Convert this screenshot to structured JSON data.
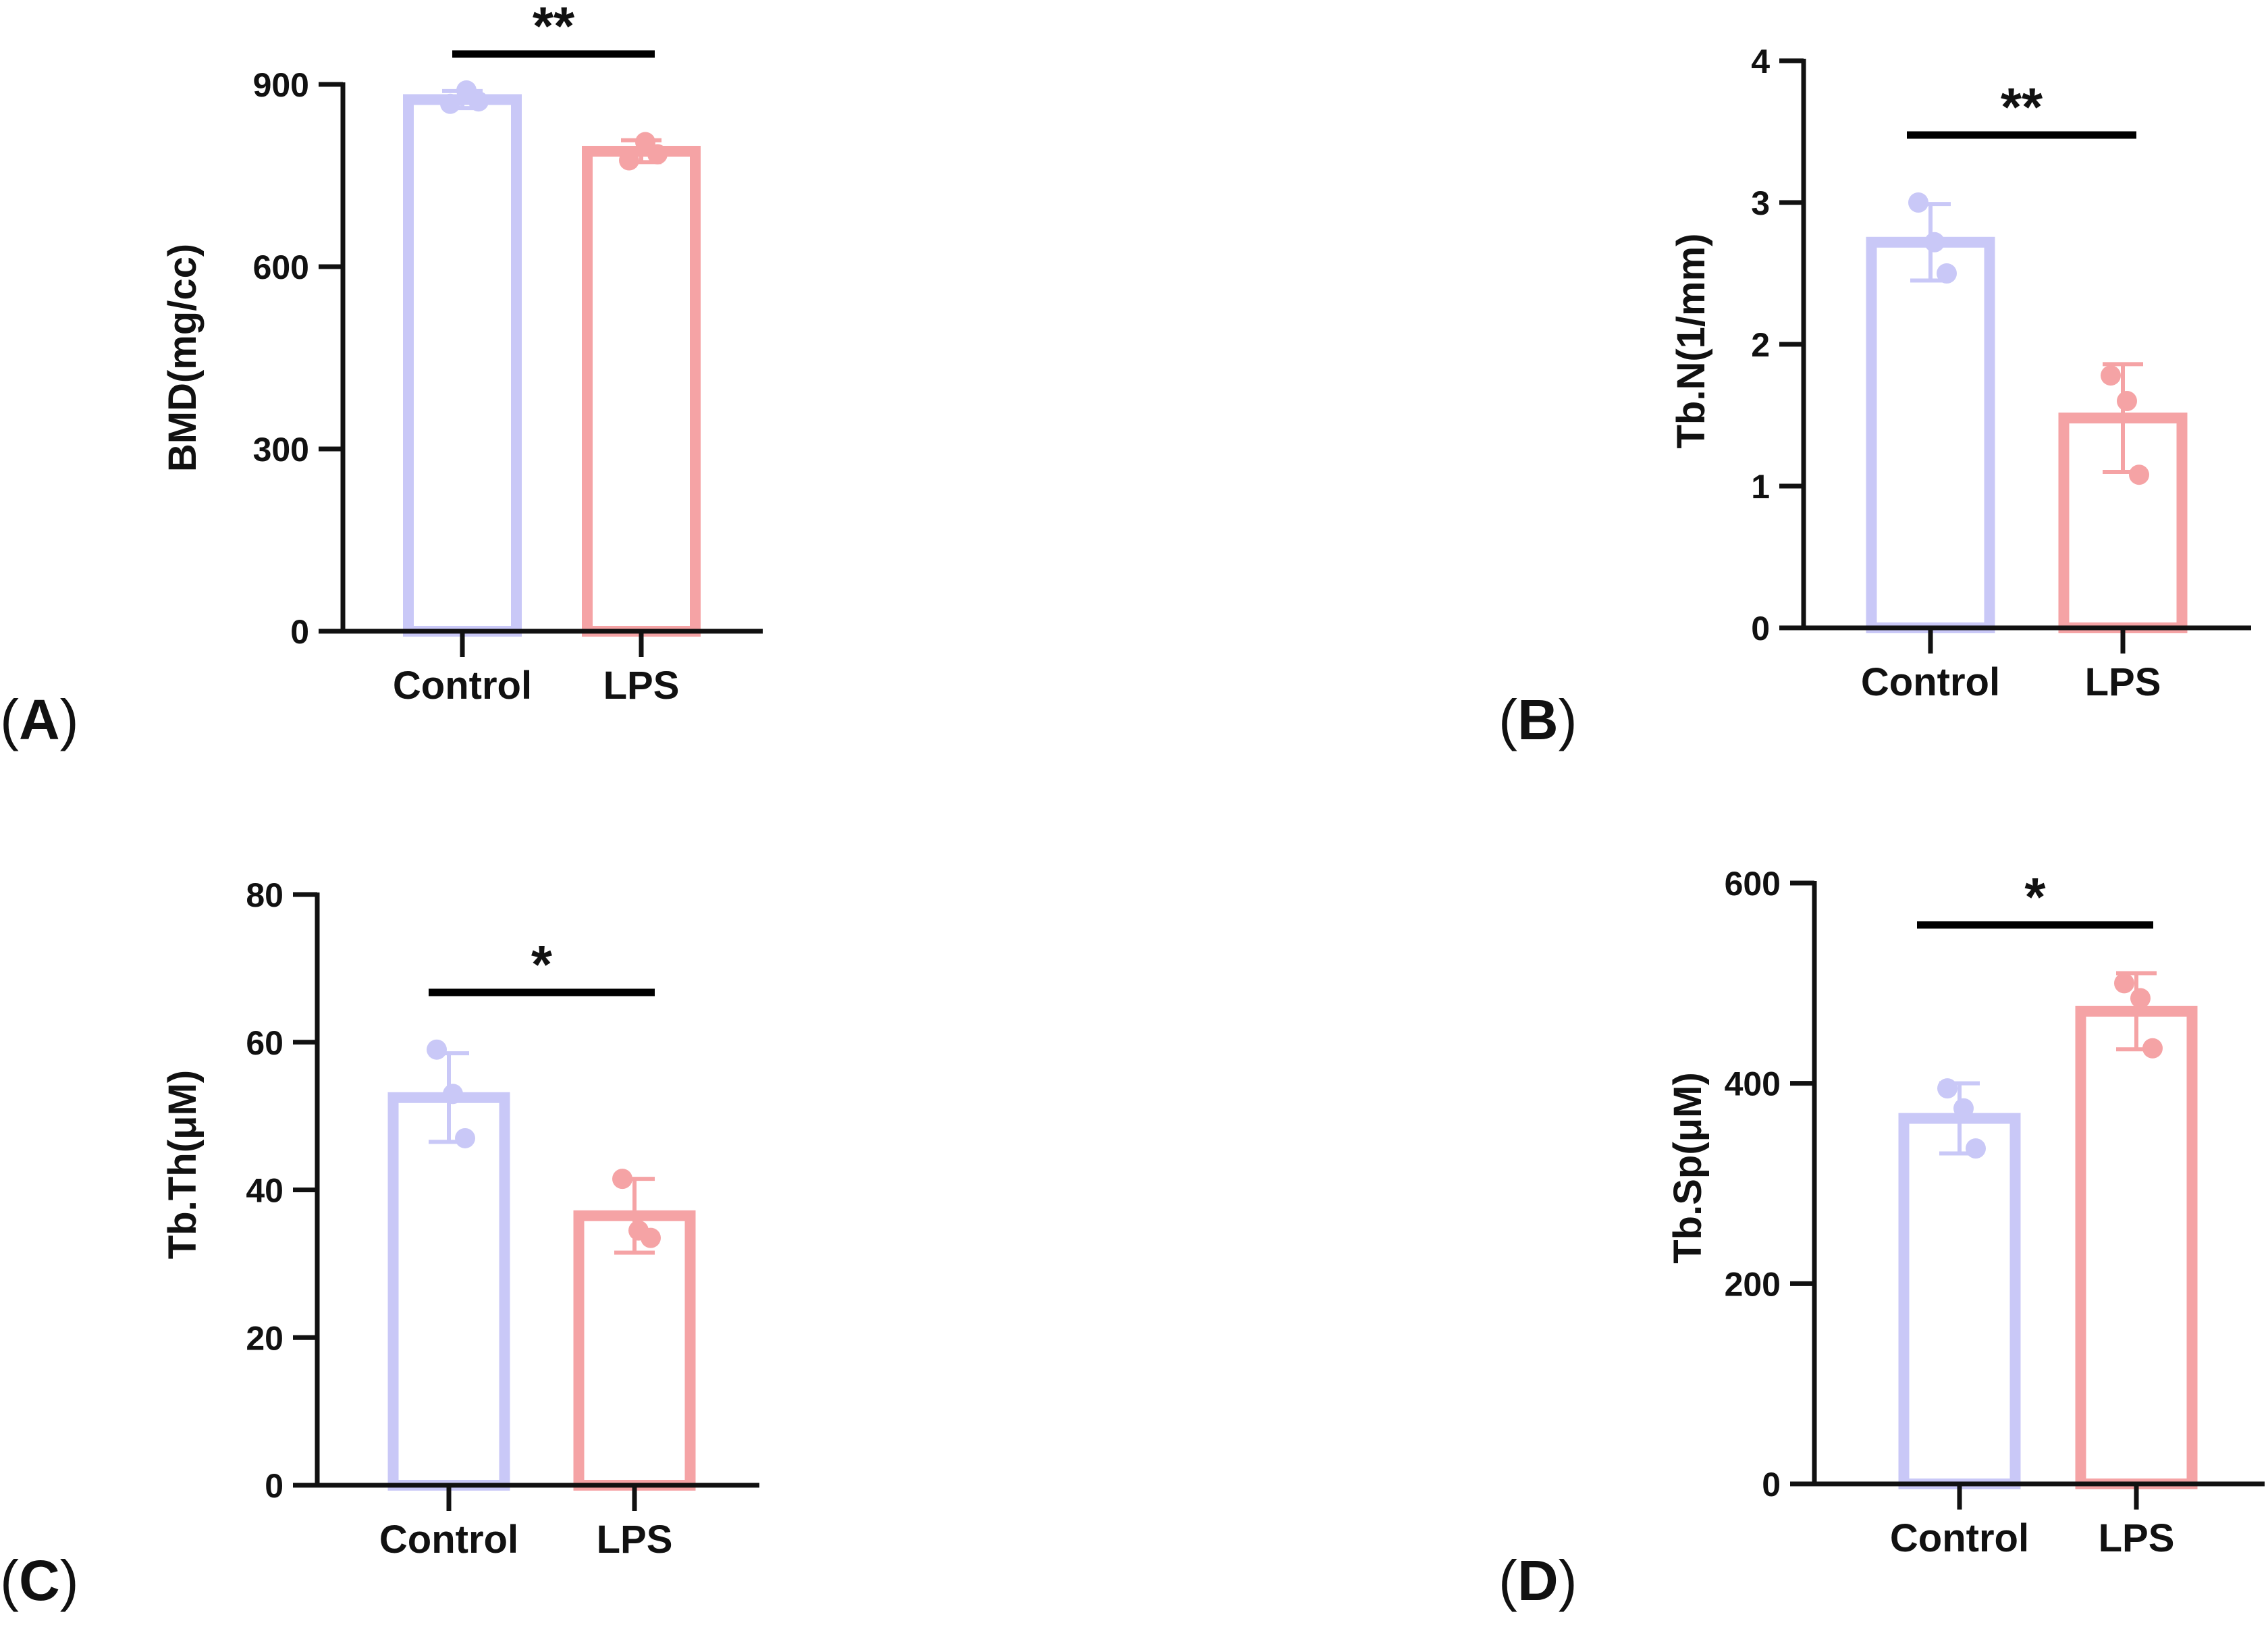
{
  "colors": {
    "control": "#c9c8f7",
    "lps": "#f5a3a5",
    "axis": "#111111"
  },
  "chart_data": [
    {
      "panel": "A",
      "type": "bar",
      "ylabel": "BMD(mg/cc)",
      "categories": [
        "Control",
        "LPS"
      ],
      "values": [
        875,
        790
      ],
      "errors": [
        14,
        18
      ],
      "points": [
        [
          868,
          890,
          872
        ],
        [
          775,
          805,
          785
        ]
      ],
      "ylim": [
        0,
        900
      ],
      "yticks": [
        "0",
        "300",
        "600",
        "900"
      ],
      "significance": "**"
    },
    {
      "panel": "B",
      "type": "bar",
      "ylabel": "Tb.N(1/mm)",
      "categories": [
        "Control",
        "LPS"
      ],
      "values": [
        2.72,
        1.48
      ],
      "errors": [
        0.27,
        0.38
      ],
      "points": [
        [
          3.0,
          2.72,
          2.5
        ],
        [
          1.78,
          1.6,
          1.08
        ]
      ],
      "ylim": [
        0,
        4
      ],
      "yticks": [
        "0",
        "1",
        "2",
        "3",
        "4"
      ],
      "significance": "**"
    },
    {
      "panel": "C",
      "type": "bar",
      "ylabel": "Tb.Th(μM)",
      "categories": [
        "Control",
        "LPS"
      ],
      "values": [
        52.5,
        36.5
      ],
      "errors": [
        6,
        5
      ],
      "points": [
        [
          59,
          53,
          47
        ],
        [
          41.5,
          34.5,
          33.5
        ]
      ],
      "ylim": [
        0,
        80
      ],
      "yticks": [
        "0",
        "20",
        "40",
        "60",
        "80"
      ],
      "significance": "*"
    },
    {
      "panel": "D",
      "type": "bar",
      "ylabel": "Tb.Sp(μM)",
      "categories": [
        "Control",
        "LPS"
      ],
      "values": [
        365,
        472
      ],
      "errors": [
        35,
        38
      ],
      "points": [
        [
          395,
          375,
          335
        ],
        [
          500,
          485,
          435
        ]
      ],
      "ylim": [
        0,
        600
      ],
      "yticks": [
        "0",
        "200",
        "400",
        "600"
      ],
      "significance": "*"
    }
  ]
}
